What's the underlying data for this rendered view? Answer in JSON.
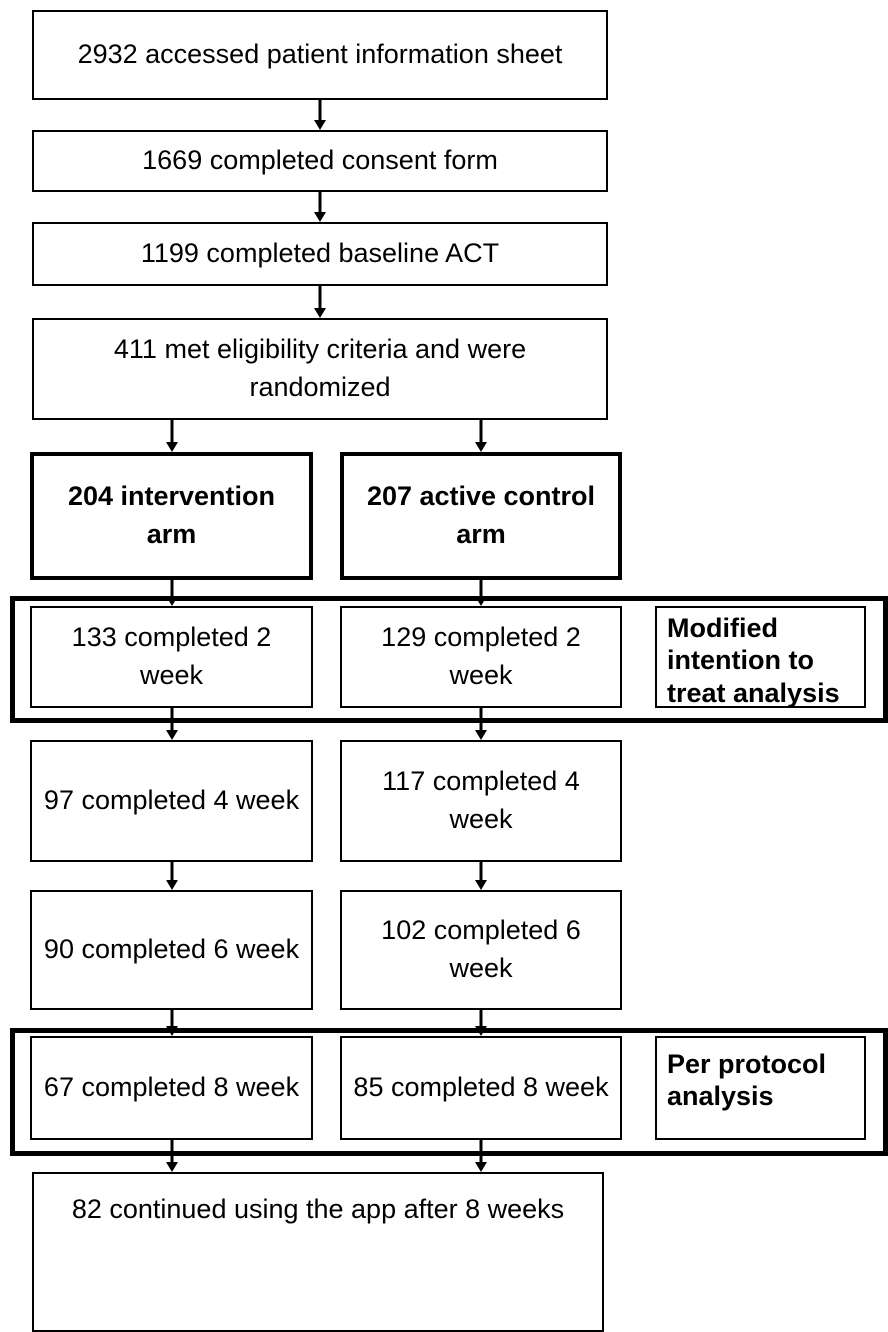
{
  "nodes": [
    {
      "label": "2932 accessed patient information sheet"
    },
    {
      "label": "1669 completed consent form"
    },
    {
      "label": "1199 completed baseline ACT"
    },
    {
      "label": "411 met eligibility criteria and were randomized"
    },
    {
      "label": "204 intervention arm"
    },
    {
      "label": "207 active control arm"
    },
    {
      "label": "133 completed 2 week"
    },
    {
      "label": "129 completed 2 week"
    },
    {
      "label": "Modified intention to treat analysis"
    },
    {
      "label": "97 completed 4 week"
    },
    {
      "label": "117 completed 4 week"
    },
    {
      "label": "90 completed 6 week"
    },
    {
      "label": "102 completed 6 week"
    },
    {
      "label": "67 completed 8 week"
    },
    {
      "label": "85 completed 8 week"
    },
    {
      "label": "Per protocol analysis"
    },
    {
      "label": "82 continued using the app after 8 weeks"
    }
  ]
}
